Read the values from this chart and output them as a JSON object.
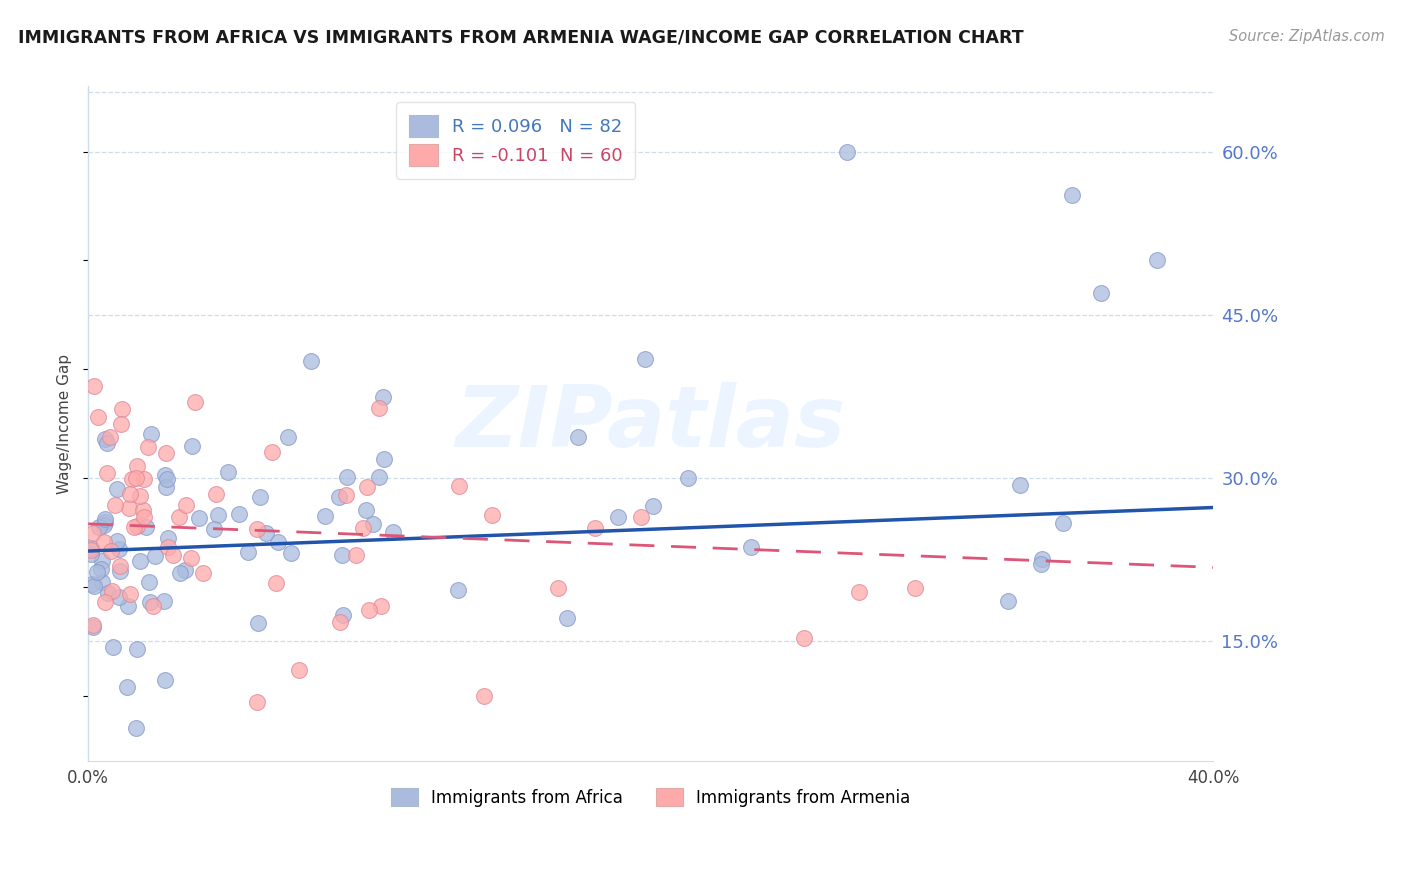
{
  "title": "IMMIGRANTS FROM AFRICA VS IMMIGRANTS FROM ARMENIA WAGE/INCOME GAP CORRELATION CHART",
  "source": "Source: ZipAtlas.com",
  "ylabel": "Wage/Income Gap",
  "yticks": [
    0.15,
    0.3,
    0.45,
    0.6
  ],
  "ytick_labels": [
    "15.0%",
    "30.0%",
    "45.0%",
    "60.0%"
  ],
  "xmin": 0.0,
  "xmax": 0.4,
  "ymin": 0.04,
  "ymax": 0.66,
  "blue_R": 0.096,
  "blue_N": 82,
  "pink_R": -0.101,
  "pink_N": 60,
  "blue_color": "#AABBDD",
  "pink_color": "#FFAAAA",
  "blue_line_color": "#2255AA",
  "pink_line_color": "#DD5577",
  "legend_label_blue": "Immigrants from Africa",
  "legend_label_pink": "Immigrants from Armenia",
  "watermark": "ZIPatlas",
  "title_color": "#1A1A1A",
  "source_color": "#999999",
  "grid_color": "#CCDDEE",
  "right_tick_color": "#5577CC",
  "ylabel_color": "#444444"
}
